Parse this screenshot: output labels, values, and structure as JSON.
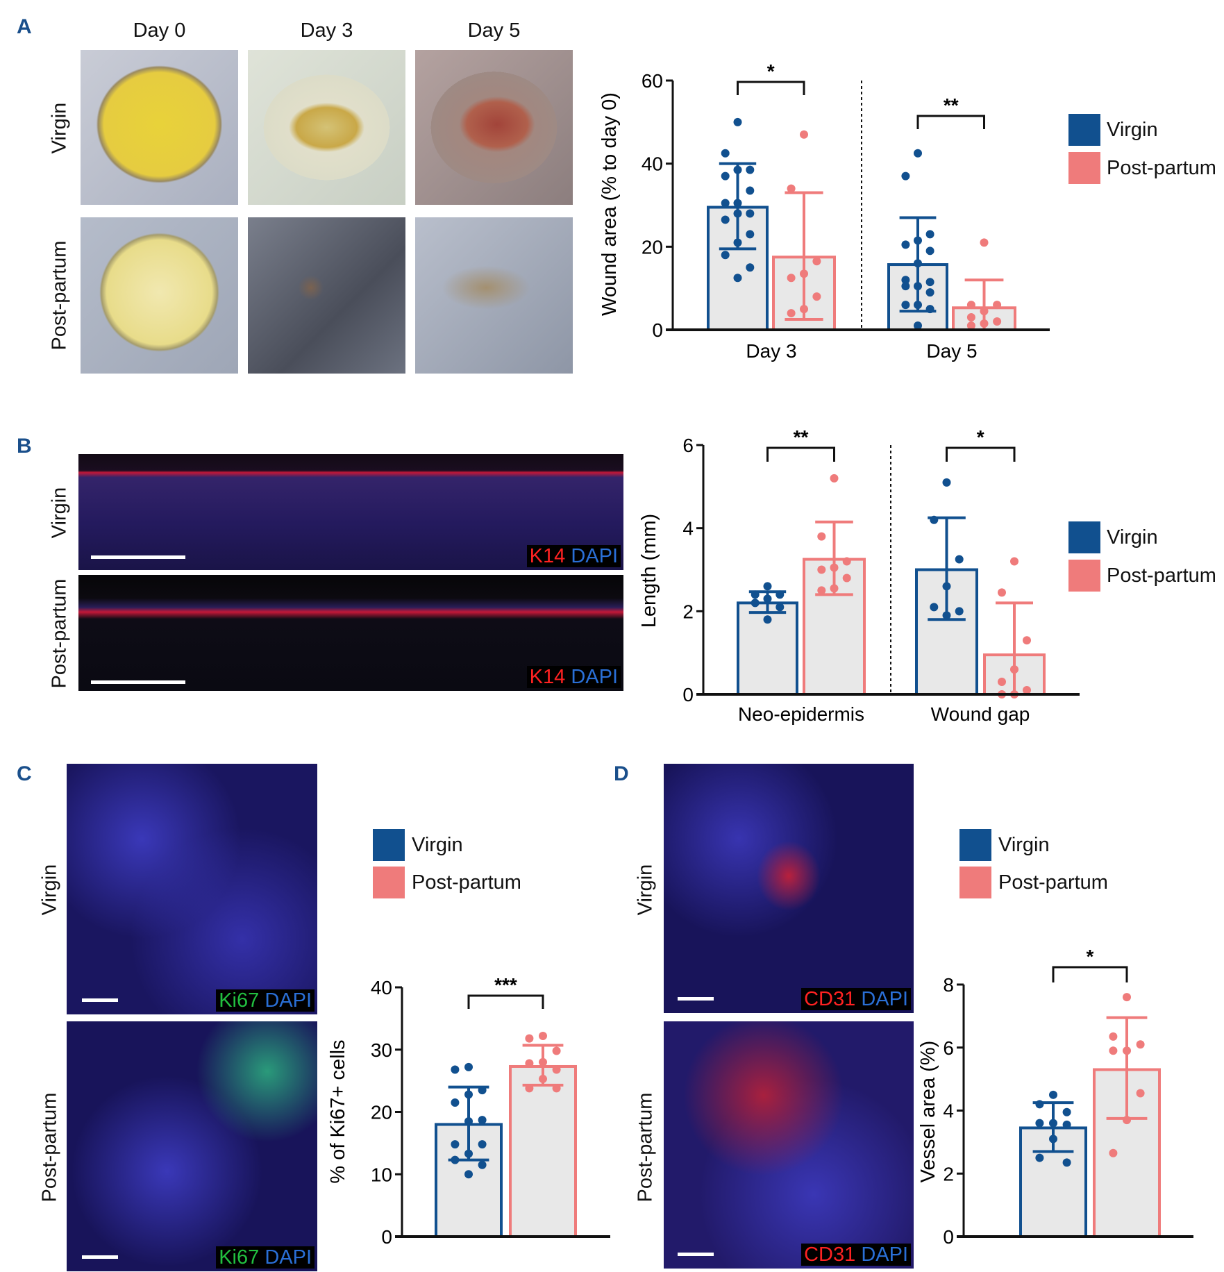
{
  "panels": {
    "A": {
      "label": "A",
      "columns": [
        "Day 0",
        "Day 3",
        "Day 5"
      ],
      "rows": [
        "Virgin",
        "Post-partum"
      ]
    },
    "B": {
      "label": "B",
      "rows": [
        "Virgin",
        "Post-partum"
      ],
      "stain": [
        "K14",
        "DAPI"
      ]
    },
    "C": {
      "label": "C",
      "rows": [
        "Virgin",
        "Post-partum"
      ],
      "stain": [
        "Ki67",
        "DAPI"
      ]
    },
    "D": {
      "label": "D",
      "rows": [
        "Virgin",
        "Post-partum"
      ],
      "stain": [
        "CD31",
        "DAPI"
      ]
    }
  },
  "legend": {
    "items": [
      "Virgin",
      "Post-partum"
    ]
  },
  "colors": {
    "virgin": "#11508f",
    "postpartum": "#ef7b7b",
    "bar_fill": "#e8e8e8",
    "label": "#1a4f8b"
  },
  "chart_data": [
    {
      "type": "bar",
      "panel": "A",
      "ylabel": "Wound area (% to day 0)",
      "ylim": [
        0,
        60
      ],
      "yticks": [
        0,
        20,
        40,
        60
      ],
      "categories": [
        "Day 3",
        "Day 5"
      ],
      "legend": "right",
      "significance": [
        "*",
        "**"
      ],
      "series": [
        {
          "name": "Virgin",
          "means": [
            29.5,
            15.7
          ],
          "sd_low": [
            19.5,
            4.5
          ],
          "sd_high": [
            40,
            27
          ],
          "points": [
            [
              50,
              42.5,
              38.5,
              38.5,
              37,
              33.5,
              30.5,
              30.5,
              28,
              28,
              26.5,
              23,
              21,
              18,
              15,
              12.5
            ],
            [
              42.5,
              37,
              23,
              21.5,
              20.5,
              19,
              16,
              12,
              11.5,
              10.5,
              10.5,
              9,
              6,
              6,
              5,
              1
            ]
          ]
        },
        {
          "name": "Post-partum",
          "means": [
            17.5,
            5.3
          ],
          "sd_low": [
            2.5,
            0
          ],
          "sd_high": [
            33,
            12
          ],
          "points": [
            [
              47,
              34,
              16.5,
              13.5,
              12.5,
              8,
              5,
              4
            ],
            [
              21,
              6,
              6,
              4.5,
              3,
              2,
              1.5,
              1
            ]
          ]
        }
      ]
    },
    {
      "type": "bar",
      "panel": "B",
      "ylabel": "Length (mm)",
      "ylim": [
        0,
        6
      ],
      "yticks": [
        0,
        2,
        4,
        6
      ],
      "categories": [
        "Neo-epidermis",
        "Wound gap"
      ],
      "legend": "right",
      "significance": [
        "**",
        "*"
      ],
      "series": [
        {
          "name": "Virgin",
          "means": [
            2.2,
            3.0
          ],
          "sd_low": [
            1.97,
            1.8
          ],
          "sd_high": [
            2.47,
            4.25
          ],
          "points": [
            [
              2.6,
              2.4,
              2.4,
              2.3,
              2.2,
              2.1,
              1.8
            ],
            [
              5.1,
              4.2,
              3.25,
              2.6,
              2.1,
              2.0,
              1.9
            ]
          ]
        },
        {
          "name": "Post-partum",
          "means": [
            3.25,
            0.95
          ],
          "sd_low": [
            2.4,
            0
          ],
          "sd_high": [
            4.15,
            2.2
          ],
          "points": [
            [
              5.2,
              3.8,
              3.2,
              3.05,
              3.0,
              2.8,
              2.55,
              2.5
            ],
            [
              3.2,
              2.45,
              1.3,
              0.6,
              0.3,
              0.1,
              0,
              0
            ]
          ]
        }
      ]
    },
    {
      "type": "bar",
      "panel": "C",
      "ylabel": "% of Ki67+ cells",
      "ylim": [
        0,
        40
      ],
      "yticks": [
        0,
        10,
        20,
        30,
        40
      ],
      "categories": [
        ""
      ],
      "legend": "top",
      "significance": [
        "***"
      ],
      "series": [
        {
          "name": "Virgin",
          "means": [
            18
          ],
          "sd_low": [
            12.3
          ],
          "sd_high": [
            24
          ],
          "points": [
            [
              27.2,
              26.8,
              23.5,
              22.8,
              21.5,
              18.7,
              18.5,
              14.8,
              14.8,
              13.3,
              12.3,
              11.5,
              10
            ]
          ]
        },
        {
          "name": "Post-partum",
          "means": [
            27.3
          ],
          "sd_low": [
            24.3
          ],
          "sd_high": [
            30.7
          ],
          "points": [
            [
              32.2,
              31.8,
              29.8,
              28,
              27.8,
              26.8,
              25.3,
              23.8,
              23.8
            ]
          ]
        }
      ]
    },
    {
      "type": "bar",
      "panel": "D",
      "ylabel": "Vessel area (%)",
      "ylim": [
        0,
        8
      ],
      "yticks": [
        0,
        2,
        4,
        6,
        8
      ],
      "categories": [
        ""
      ],
      "legend": "top",
      "significance": [
        "*"
      ],
      "series": [
        {
          "name": "Virgin",
          "means": [
            3.45
          ],
          "sd_low": [
            2.7
          ],
          "sd_high": [
            4.25
          ],
          "points": [
            [
              4.5,
              4.2,
              3.95,
              3.6,
              3.6,
              3.55,
              3.1,
              2.5,
              2.35
            ]
          ]
        },
        {
          "name": "Post-partum",
          "means": [
            5.3
          ],
          "sd_low": [
            3.75
          ],
          "sd_high": [
            6.95
          ],
          "points": [
            [
              7.6,
              6.35,
              6.1,
              5.9,
              5.9,
              4.55,
              3.7,
              2.65
            ]
          ]
        }
      ]
    }
  ]
}
